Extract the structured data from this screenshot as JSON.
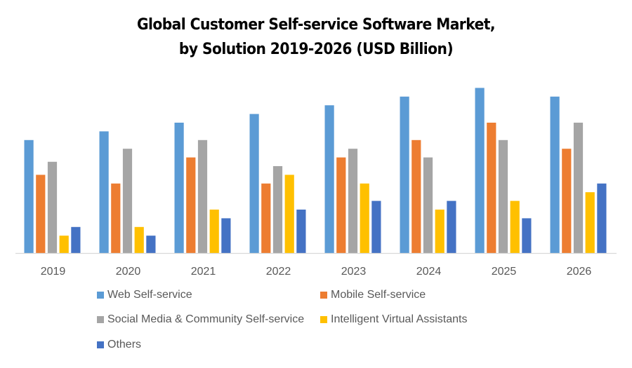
{
  "chart_data": {
    "type": "bar",
    "title": "Global Customer Self-service Software Market, by Solution 2019-2026 (USD Billion)",
    "title_lines": [
      "Global Customer Self-service Software Market,",
      "by Solution 2019-2026 (USD Billion)"
    ],
    "xlabel": "",
    "ylabel": "",
    "categories": [
      "2019",
      "2020",
      "2021",
      "2022",
      "2023",
      "2024",
      "2025",
      "2026"
    ],
    "ylim": [
      0,
      20
    ],
    "grid": false,
    "y_axis_visible": false,
    "legend_position": "bottom",
    "series": [
      {
        "name": "Web Self-service",
        "color": "#5B9BD5",
        "values": [
          13,
          14,
          15,
          16,
          17,
          18,
          19,
          18
        ]
      },
      {
        "name": "Mobile Self-service",
        "color": "#ED7D31",
        "values": [
          9,
          8,
          11,
          8,
          11,
          13,
          15,
          12
        ]
      },
      {
        "name": "Social Media & Community Self-service",
        "color": "#A5A5A5",
        "values": [
          10.5,
          12,
          13,
          10,
          12,
          11,
          13,
          15
        ]
      },
      {
        "name": "Intelligent Virtual Assistants",
        "color": "#FFC000",
        "values": [
          2,
          3,
          5,
          9,
          8,
          5,
          6,
          7
        ]
      },
      {
        "name": "Others",
        "color": "#4472C4",
        "values": [
          3,
          2,
          4,
          5,
          6,
          6,
          4,
          8
        ]
      }
    ]
  }
}
